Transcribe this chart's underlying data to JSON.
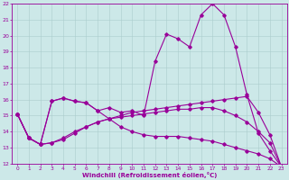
{
  "xlabel": "Windchill (Refroidissement éolien,°C)",
  "xlim": [
    -0.5,
    23.5
  ],
  "ylim": [
    12,
    22
  ],
  "xtick_labels": [
    "0",
    "1",
    "2",
    "3",
    "4",
    "5",
    "6",
    "7",
    "8",
    "9",
    "10",
    "11",
    "12",
    "13",
    "14",
    "15",
    "16",
    "17",
    "18",
    "19",
    "20",
    "21",
    "22",
    "23"
  ],
  "ytick_labels": [
    "12",
    "13",
    "14",
    "15",
    "16",
    "17",
    "18",
    "19",
    "20",
    "21",
    "22"
  ],
  "ytick_vals": [
    12,
    13,
    14,
    15,
    16,
    17,
    18,
    19,
    20,
    21,
    22
  ],
  "bg_color": "#cce8e8",
  "line_color": "#990099",
  "grid_color": "#aacccc",
  "series": [
    [
      15.1,
      13.6,
      13.2,
      15.9,
      16.1,
      15.9,
      15.8,
      15.3,
      15.5,
      15.2,
      15.3,
      15.0,
      18.4,
      20.1,
      19.8,
      19.3,
      21.3,
      22.0,
      21.3,
      19.3,
      16.3,
      13.9,
      12.8,
      11.8
    ],
    [
      15.1,
      13.6,
      13.2,
      13.3,
      13.5,
      13.9,
      14.3,
      14.6,
      14.8,
      15.0,
      15.2,
      15.3,
      15.4,
      15.5,
      15.6,
      15.7,
      15.8,
      15.9,
      16.0,
      16.1,
      16.2,
      15.2,
      13.8,
      11.8
    ],
    [
      15.1,
      13.6,
      13.2,
      13.3,
      13.6,
      14.0,
      14.3,
      14.6,
      14.8,
      14.9,
      15.0,
      15.1,
      15.2,
      15.3,
      15.4,
      15.4,
      15.5,
      15.5,
      15.3,
      15.0,
      14.6,
      14.0,
      13.3,
      11.8
    ],
    [
      15.1,
      13.6,
      13.2,
      15.9,
      16.1,
      15.9,
      15.8,
      15.3,
      14.8,
      14.3,
      14.0,
      13.8,
      13.7,
      13.7,
      13.7,
      13.6,
      13.5,
      13.4,
      13.2,
      13.0,
      12.8,
      12.6,
      12.3,
      11.8
    ]
  ]
}
